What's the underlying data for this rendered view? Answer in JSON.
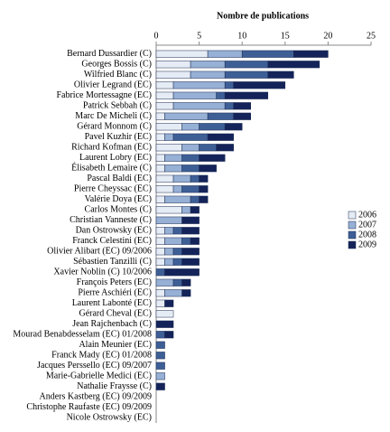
{
  "chart_data": {
    "type": "bar",
    "orientation": "horizontal",
    "stacked": true,
    "title": "Nombre de publications",
    "categories": [
      "Bernard Dussardier (C)",
      "Georges Bossis (C)",
      "Wilfried Blanc (C)",
      "Olivier Legrand (EC)",
      "Fabrice Mortessagne (EC)",
      "Patrick Sebbah (C)",
      "Marc De Micheli (C)",
      "Gérard Monnom (C)",
      "Pavel Kuzhir (EC)",
      "Richard Kofman (EC)",
      "Laurent Lobry (EC)",
      "Élisabeth Lemaire (C)",
      "Pascal Baldi (EC)",
      "Pierre Cheyssac (EC)",
      "Valérie Doya (EC)",
      "Carlos Montes (C)",
      "Christian Vanneste (C)",
      "Dan Ostrowsky (EC)",
      "Franck Celestini (EC)",
      "Olivier Alibart (EC) 09/2006",
      "Sébastien Tanzilli (C)",
      "Xavier Noblin (C) 10/2006",
      "François Peters (EC)",
      "Pierre Aschiéri (EC)",
      "Laurent Labonté (EC)",
      "Gérard Cheval (EC)",
      "Jean Rajchenbach (C)",
      "Mourad Benabdesselam (EC) 01/2008",
      "Alain Meunier (EC)",
      "Franck Mady (EC) 01/2008",
      "Jacques Perssello (EC) 09/2007",
      "Marie-Gabrielle Medici (EC)",
      "Nathalie Fraysse (C)",
      "Anders Kastberg (EC) 09/2009",
      "Christophe Raufaste (EC) 09/2009",
      "Nicole Ostrowsky (EC)"
    ],
    "series": [
      {
        "name": "2006",
        "color": "#e6ecf5",
        "values": [
          6,
          4,
          4,
          2,
          2,
          2,
          1,
          3,
          1,
          3,
          1,
          1,
          2,
          2,
          1,
          3,
          0,
          1,
          1,
          1,
          1,
          0,
          0,
          1,
          1,
          2,
          0,
          0,
          0,
          0,
          0,
          0,
          0,
          0,
          0,
          0
        ]
      },
      {
        "name": "2007",
        "color": "#97b0d5",
        "values": [
          4,
          4,
          4,
          6,
          5,
          6,
          5,
          2,
          1,
          2,
          2,
          2,
          2,
          1,
          3,
          1,
          3,
          1,
          2,
          1,
          1,
          0,
          2,
          2,
          0,
          0,
          0,
          0,
          0,
          0,
          0,
          1,
          0,
          0,
          0,
          0
        ]
      },
      {
        "name": "2008",
        "color": "#3e5f96",
        "values": [
          6,
          5,
          5,
          1,
          1,
          1,
          3,
          3,
          4,
          2,
          2,
          2,
          1,
          2,
          1,
          0,
          0,
          1,
          1,
          1,
          1,
          1,
          1,
          0,
          0,
          0,
          0,
          1,
          1,
          1,
          1,
          0,
          0,
          0,
          0,
          0
        ]
      },
      {
        "name": "2009",
        "color": "#14245a",
        "values": [
          4,
          6,
          3,
          6,
          5,
          2,
          2,
          2,
          3,
          2,
          3,
          2,
          1,
          1,
          1,
          1,
          2,
          2,
          1,
          2,
          2,
          4,
          1,
          1,
          1,
          0,
          2,
          1,
          0,
          0,
          0,
          0,
          1,
          0,
          0,
          0
        ]
      }
    ],
    "xlim": [
      0,
      25
    ],
    "xticks": [
      0,
      5,
      10,
      15,
      20,
      25
    ],
    "legend": "right"
  }
}
